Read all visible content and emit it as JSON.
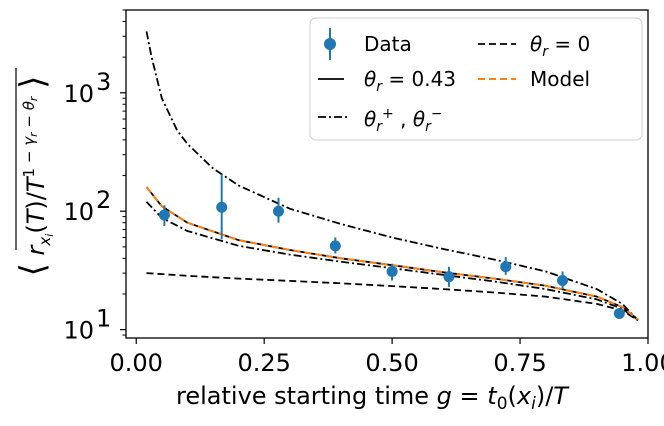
{
  "chart_data": {
    "type": "line",
    "xlabel": "relative starting time g = t₀(xᵢ)/T",
    "ylabel": "⟨ r_xᵢ(T)/T^(1−γ_r−θ_r) ⟩",
    "xlim": [
      -0.02,
      1.0
    ],
    "ylim": [
      8.5,
      5000
    ],
    "yscale": "log",
    "x_ticks": [
      {
        "value": 0.0,
        "label": "0.00"
      },
      {
        "value": 0.25,
        "label": "0.25"
      },
      {
        "value": 0.5,
        "label": "0.50"
      },
      {
        "value": 0.75,
        "label": "0.75"
      },
      {
        "value": 1.0,
        "label": "1.00"
      }
    ],
    "y_ticks": [
      {
        "value": 10,
        "label": "10",
        "exp": "1"
      },
      {
        "value": 100,
        "label": "10",
        "exp": "2"
      },
      {
        "value": 1000,
        "label": "10",
        "exp": "3"
      }
    ],
    "data_series": {
      "name": "Data",
      "color": "#1f77b4",
      "x": [
        0.055,
        0.167,
        0.278,
        0.389,
        0.5,
        0.611,
        0.722,
        0.833,
        0.944
      ],
      "y": [
        93,
        108,
        100,
        51,
        31,
        28,
        34,
        26,
        13.7
      ],
      "yerr_low": [
        75,
        58,
        80,
        44,
        26,
        23,
        29,
        22,
        12.9
      ],
      "yerr_high": [
        112,
        205,
        130,
        60,
        36,
        34,
        41,
        31,
        14.5
      ]
    },
    "lines": [
      {
        "name": "θ_r = 0.43",
        "style": "solid",
        "color": "#000000",
        "x": [
          0.02,
          0.05,
          0.1,
          0.2,
          0.3,
          0.4,
          0.5,
          0.6,
          0.7,
          0.8,
          0.9,
          0.95,
          0.98
        ],
        "y": [
          160,
          110,
          80,
          57,
          47,
          40,
          35,
          30.5,
          27,
          23.5,
          19,
          15.5,
          12.2
        ]
      },
      {
        "name": "θ_r = 0",
        "style": "dashed",
        "color": "#000000",
        "x": [
          0.02,
          0.1,
          0.2,
          0.3,
          0.4,
          0.5,
          0.6,
          0.7,
          0.8,
          0.9,
          0.95,
          0.98
        ],
        "y": [
          30,
          28.5,
          27,
          25.8,
          24.6,
          23.3,
          22,
          20.6,
          19,
          16.5,
          14.5,
          12
        ]
      },
      {
        "name": "θ_r⁺",
        "style": "dashdot",
        "color": "#000000",
        "x": [
          0.02,
          0.03,
          0.05,
          0.08,
          0.1,
          0.15,
          0.2,
          0.3,
          0.4,
          0.5,
          0.6,
          0.7,
          0.8,
          0.9,
          0.95,
          0.98
        ],
        "y": [
          3300,
          2000,
          900,
          480,
          370,
          230,
          165,
          105,
          78,
          60,
          48,
          39,
          31,
          22,
          16.5,
          12
        ]
      },
      {
        "name": "θ_r⁻",
        "style": "dashdot",
        "color": "#000000",
        "x": [
          0.02,
          0.05,
          0.1,
          0.2,
          0.3,
          0.4,
          0.5,
          0.6,
          0.7,
          0.8,
          0.9,
          0.95,
          0.98
        ],
        "y": [
          120,
          88,
          68,
          51,
          43,
          37.5,
          33,
          29,
          25.5,
          22,
          18,
          15,
          12
        ]
      },
      {
        "name": "Model",
        "style": "dashed",
        "color": "#ff7f0e",
        "x": [
          0.02,
          0.05,
          0.1,
          0.2,
          0.3,
          0.4,
          0.5,
          0.6,
          0.7,
          0.8,
          0.9,
          0.95,
          0.98
        ],
        "y": [
          160,
          110,
          80,
          57,
          47,
          40,
          35,
          30.5,
          27,
          23.5,
          19,
          15.5,
          12.2
        ]
      }
    ],
    "legend": {
      "position": "top-right",
      "entries": [
        {
          "label": "Data",
          "style": "marker"
        },
        {
          "label": "θ_r = 0",
          "style": "dashed"
        },
        {
          "label": "θ_r = 0.43",
          "style": "solid"
        },
        {
          "label": "Model",
          "style": "dashed-orange"
        },
        {
          "label": "θ_r⁺ , θ_r⁻",
          "style": "dashdot"
        }
      ]
    }
  },
  "legend_text": {
    "data": "Data",
    "model": "Model"
  },
  "axis_text": {
    "xlabel_prefix": "relative starting time ",
    "ylabel_r": "r",
    "ylabel_T": "/T"
  }
}
